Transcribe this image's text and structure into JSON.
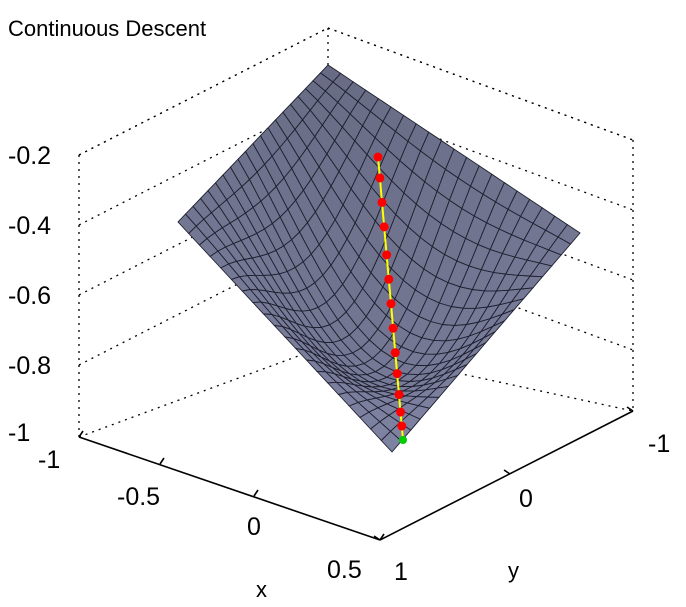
{
  "chart_data": {
    "type": "surface",
    "title": "Continuous Descent",
    "xlabel": "x",
    "ylabel": "y",
    "zlabel": "",
    "x_ticks": [
      "-1",
      "-0.5",
      "0",
      "0.5"
    ],
    "y_ticks": [
      "-1",
      "0",
      "1"
    ],
    "z_ticks": [
      "-0.2",
      "-0.4",
      "-0.6",
      "-0.8",
      "-1"
    ],
    "xlim": [
      -1,
      0.6
    ],
    "ylim": [
      -1,
      1
    ],
    "zlim": [
      -1,
      -0.1
    ],
    "grid": true,
    "surface": {
      "function": "z = x^2 + y^2 - 1",
      "x_range": [
        -1,
        0.6
      ],
      "y_range": [
        -1,
        1
      ],
      "grid_count": 20,
      "face_color": "#6b6f8e",
      "edge_color": "#1e2030"
    },
    "path": {
      "points": [
        {
          "x": -0.06,
          "y": -0.92,
          "z": -0.19
        },
        {
          "x": -0.06,
          "y": -0.86,
          "z": -0.25
        },
        {
          "x": -0.055,
          "y": -0.78,
          "z": -0.32
        },
        {
          "x": -0.05,
          "y": -0.7,
          "z": -0.39
        },
        {
          "x": -0.045,
          "y": -0.61,
          "z": -0.47
        },
        {
          "x": -0.04,
          "y": -0.53,
          "z": -0.54
        },
        {
          "x": -0.035,
          "y": -0.45,
          "z": -0.61
        },
        {
          "x": -0.03,
          "y": -0.37,
          "z": -0.68
        },
        {
          "x": -0.025,
          "y": -0.29,
          "z": -0.75
        },
        {
          "x": -0.02,
          "y": -0.22,
          "z": -0.81
        },
        {
          "x": -0.015,
          "y": -0.15,
          "z": -0.87
        },
        {
          "x": -0.01,
          "y": -0.09,
          "z": -0.92
        },
        {
          "x": -0.005,
          "y": -0.04,
          "z": -0.96
        }
      ],
      "line_color": "#ffff00",
      "marker_color": "#ff0000",
      "end_point": {
        "x": 0.0,
        "y": 0.0,
        "z": -1.0
      },
      "end_color": "#00cc00"
    }
  }
}
